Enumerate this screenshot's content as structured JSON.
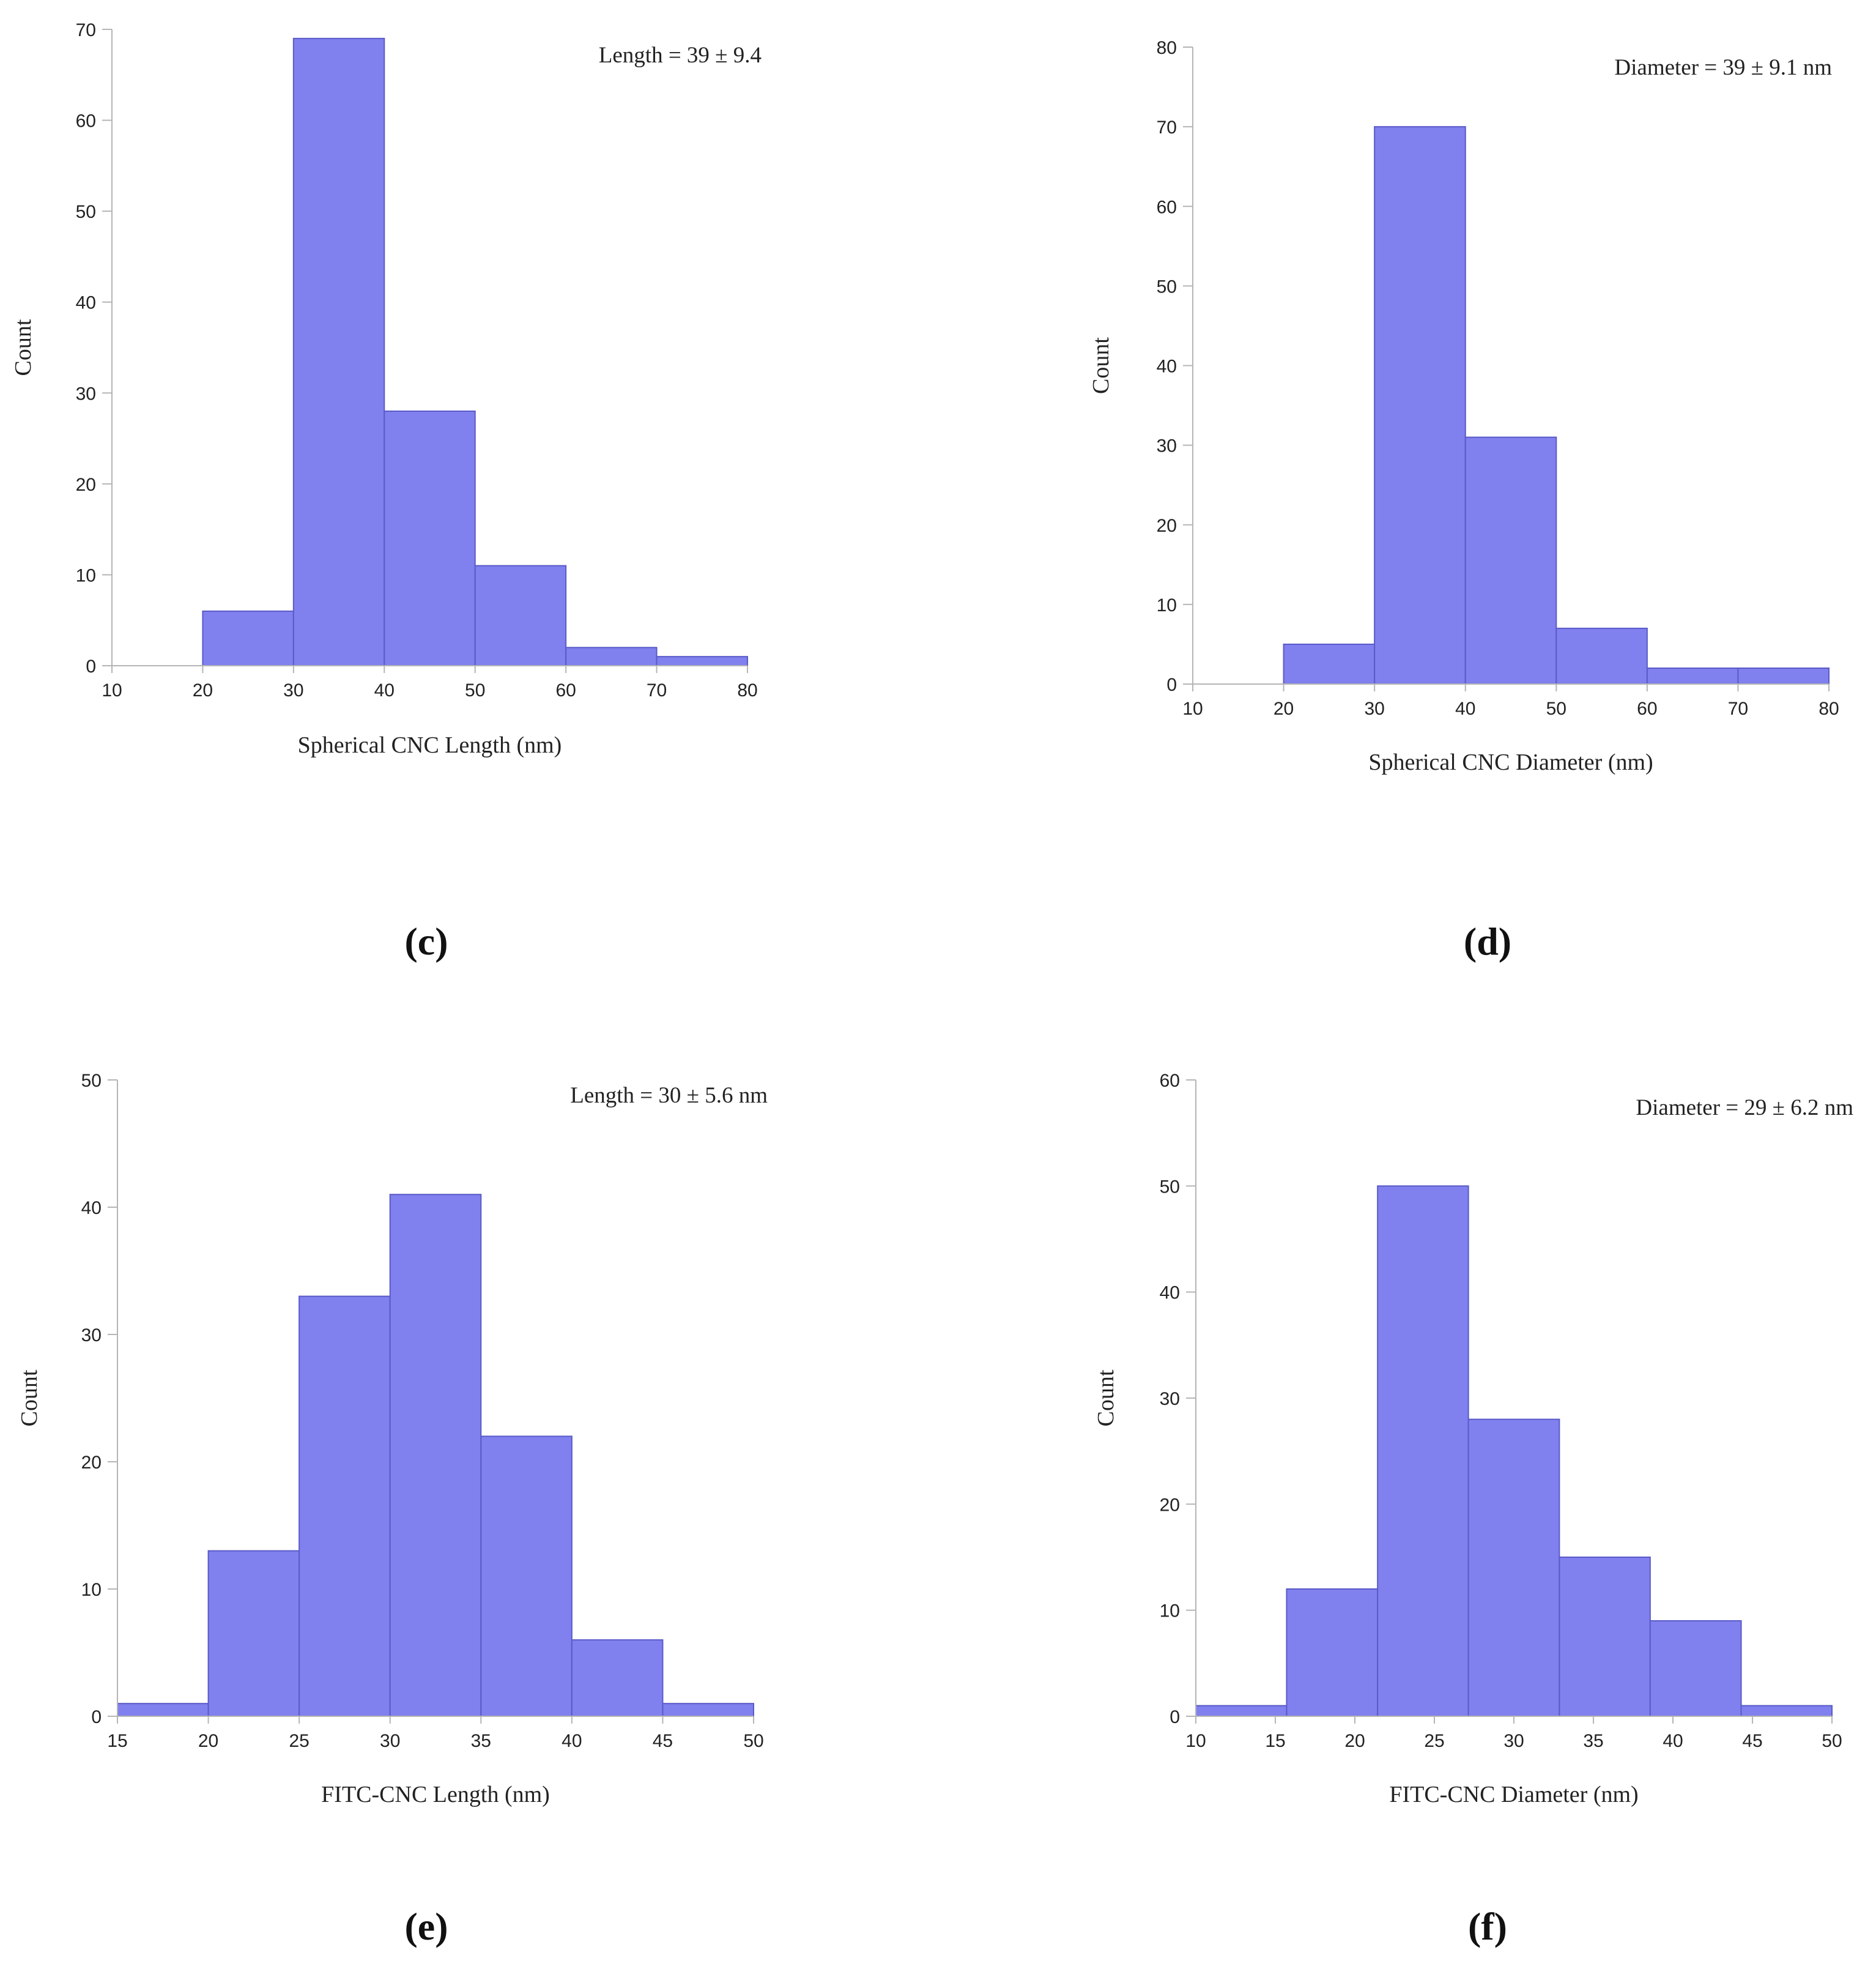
{
  "colors": {
    "bar_fill": "#8080ee",
    "bar_edge": "#5a5ac8",
    "axis": "#b5b5b5",
    "text": "#222222"
  },
  "chart_data": [
    {
      "id": "c",
      "type": "bar",
      "panel_label": "(c)",
      "annotation": "Length = 39 ± 9.4",
      "xlabel": "Spherical CNC Length (nm)",
      "ylabel": "Count",
      "xlim": [
        10,
        80
      ],
      "ylim": [
        0,
        70
      ],
      "xticks": [
        10,
        20,
        30,
        40,
        50,
        60,
        70,
        80
      ],
      "yticks": [
        0,
        10,
        20,
        30,
        40,
        50,
        60,
        70
      ],
      "bin_edges": [
        20,
        30,
        40,
        50,
        60,
        70,
        80
      ],
      "values": [
        6,
        69,
        28,
        11,
        2,
        1
      ]
    },
    {
      "id": "d",
      "type": "bar",
      "panel_label": "(d)",
      "annotation": "Diameter = 39 ± 9.1 nm",
      "xlabel": "Spherical CNC Diameter (nm)",
      "ylabel": "Count",
      "xlim": [
        10,
        80
      ],
      "ylim": [
        0,
        80
      ],
      "xticks": [
        10,
        20,
        30,
        40,
        50,
        60,
        70,
        80
      ],
      "yticks": [
        0,
        10,
        20,
        30,
        40,
        50,
        60,
        70,
        80
      ],
      "bin_edges": [
        20,
        30,
        40,
        50,
        60,
        70,
        80
      ],
      "values": [
        5,
        70,
        31,
        7,
        2,
        2
      ]
    },
    {
      "id": "e",
      "type": "bar",
      "panel_label": "(e)",
      "annotation": "Length = 30 ± 5.6 nm",
      "xlabel": "FITC-CNC Length (nm)",
      "ylabel": "Count",
      "xlim": [
        15,
        50
      ],
      "ylim": [
        0,
        50
      ],
      "xticks": [
        15,
        20,
        25,
        30,
        35,
        40,
        45,
        50
      ],
      "yticks": [
        0,
        10,
        20,
        30,
        40,
        50
      ],
      "bin_edges": [
        15,
        20,
        25,
        30,
        35,
        40,
        45,
        50
      ],
      "values": [
        1,
        13,
        33,
        41,
        22,
        6,
        1
      ]
    },
    {
      "id": "f",
      "type": "bar",
      "panel_label": "(f)",
      "annotation": "Diameter = 29 ± 6.2 nm",
      "xlabel": "FITC-CNC Diameter (nm)",
      "ylabel": "Count",
      "xlim": [
        10,
        50
      ],
      "ylim": [
        0,
        60
      ],
      "xticks": [
        10,
        15,
        20,
        25,
        30,
        35,
        40,
        45,
        50
      ],
      "yticks": [
        0,
        10,
        20,
        30,
        40,
        50,
        60
      ],
      "bin_edges": [
        10,
        15.71,
        21.43,
        27.14,
        32.86,
        38.57,
        44.29,
        50
      ],
      "values": [
        1,
        12,
        50,
        28,
        15,
        9,
        1
      ]
    }
  ]
}
